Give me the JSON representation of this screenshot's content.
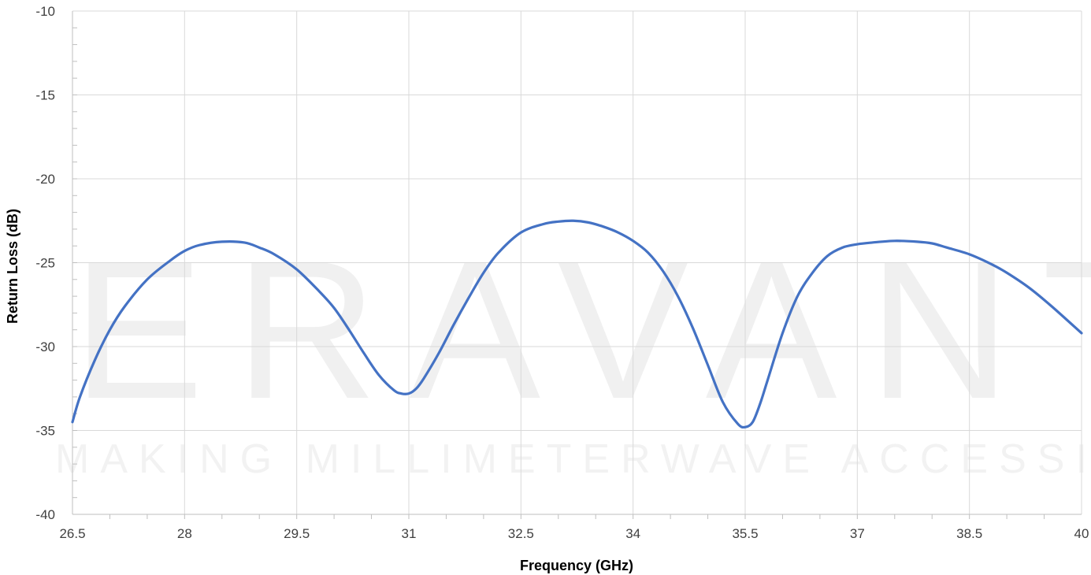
{
  "watermark": {
    "logo_text": "ERAVANT",
    "tagline": "MAKING MILLIMETERWAVE ACCESSIBLE"
  },
  "colors": {
    "line": "#4472c4",
    "grid": "#d9d9d9",
    "axis": "#bfbfbf",
    "minor_tick": "#bfbfbf"
  },
  "chart_data": {
    "type": "line",
    "xlabel": "Frequency (GHz)",
    "ylabel": "Return Loss (dB)",
    "xlim": [
      26.5,
      40
    ],
    "ylim": [
      -40,
      -10
    ],
    "x_ticks": [
      26.5,
      28,
      29.5,
      31,
      32.5,
      34,
      35.5,
      37,
      38.5,
      40
    ],
    "y_ticks": [
      -10,
      -15,
      -20,
      -25,
      -30,
      -35,
      -40
    ],
    "x_tick_labels": [
      "26.5",
      "28",
      "29.5",
      "31",
      "32.5",
      "34",
      "35.5",
      "37",
      "38.5",
      "40"
    ],
    "y_tick_labels": [
      "-10",
      "-15",
      "-20",
      "-25",
      "-30",
      "-35",
      "-40"
    ],
    "grid": true,
    "series": [
      {
        "x": [
          26.5,
          26.6,
          26.8,
          27.0,
          27.2,
          27.5,
          27.8,
          28.0,
          28.2,
          28.5,
          28.8,
          29.0,
          29.2,
          29.5,
          29.8,
          30.0,
          30.2,
          30.4,
          30.6,
          30.8,
          30.9,
          31.0,
          31.1,
          31.2,
          31.4,
          31.6,
          31.8,
          32.0,
          32.2,
          32.5,
          32.8,
          33.0,
          33.2,
          33.4,
          33.6,
          33.8,
          34.0,
          34.2,
          34.4,
          34.6,
          34.8,
          35.0,
          35.2,
          35.4,
          35.5,
          35.6,
          35.7,
          35.8,
          36.0,
          36.2,
          36.4,
          36.6,
          36.8,
          37.0,
          37.2,
          37.5,
          37.8,
          38.0,
          38.2,
          38.5,
          38.8,
          39.0,
          39.3,
          39.6,
          40.0
        ],
        "y": [
          -34.5,
          -33.0,
          -30.8,
          -29.0,
          -27.6,
          -26.0,
          -24.9,
          -24.3,
          -23.95,
          -23.75,
          -23.8,
          -24.1,
          -24.5,
          -25.4,
          -26.7,
          -27.7,
          -29.0,
          -30.4,
          -31.7,
          -32.6,
          -32.8,
          -32.8,
          -32.5,
          -31.9,
          -30.4,
          -28.7,
          -27.1,
          -25.6,
          -24.4,
          -23.2,
          -22.7,
          -22.55,
          -22.5,
          -22.6,
          -22.85,
          -23.2,
          -23.7,
          -24.4,
          -25.5,
          -27.0,
          -28.9,
          -31.1,
          -33.3,
          -34.6,
          -34.8,
          -34.5,
          -33.4,
          -32.0,
          -29.2,
          -27.0,
          -25.6,
          -24.6,
          -24.1,
          -23.9,
          -23.8,
          -23.7,
          -23.75,
          -23.85,
          -24.1,
          -24.5,
          -25.1,
          -25.6,
          -26.5,
          -27.6,
          -29.2
        ]
      }
    ]
  }
}
